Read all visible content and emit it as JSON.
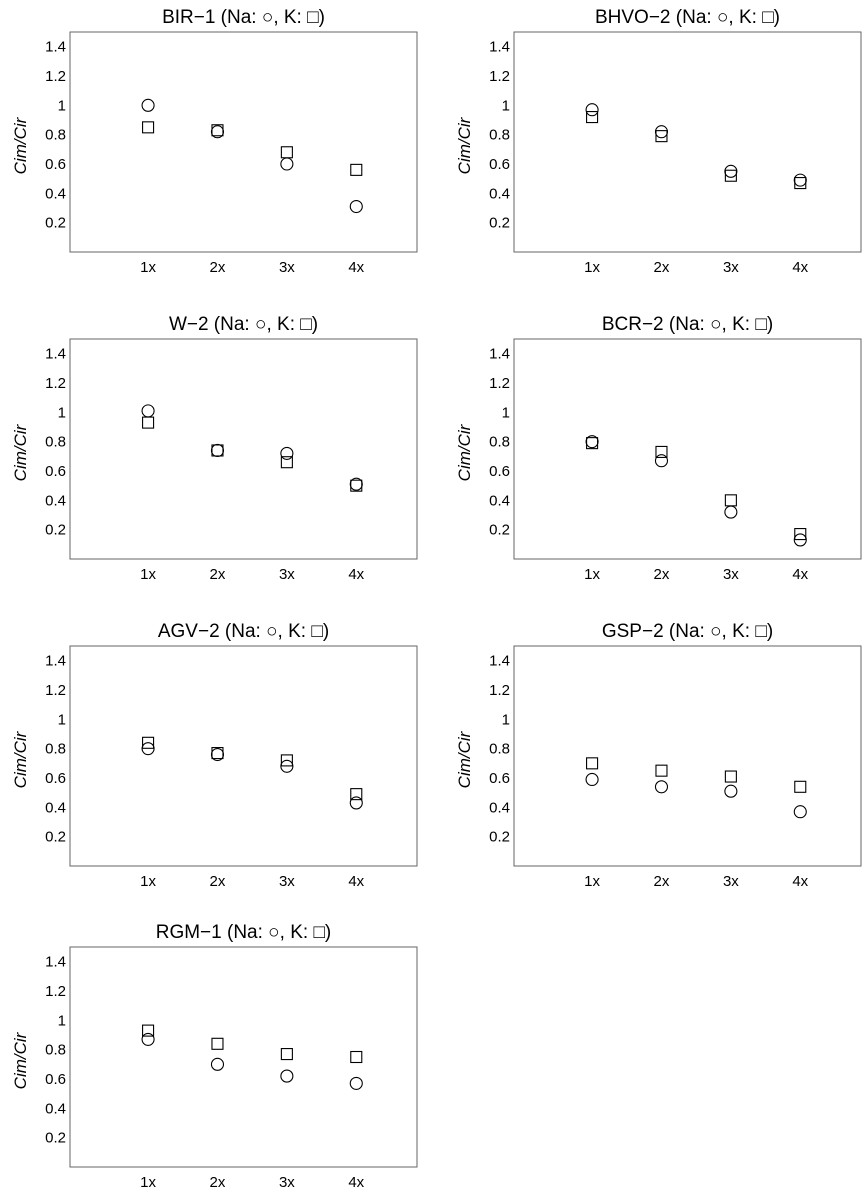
{
  "chart_data": [
    {
      "type": "scatter",
      "title": "BIR−1 (Na: ○, K: □)",
      "xlabel": "",
      "ylabel": "Cim/Cir",
      "categories": [
        "1x",
        "2x",
        "3x",
        "4x"
      ],
      "yticks": [
        "0.2",
        "0.4",
        "0.6",
        "0.8",
        "1",
        "1.2",
        "1.4"
      ],
      "ylim": [
        0,
        1.5
      ],
      "grid": false,
      "series": [
        {
          "marker": "circle",
          "values": [
            1.0,
            0.82,
            0.6,
            0.31
          ]
        },
        {
          "marker": "square",
          "values": [
            0.85,
            0.83,
            0.68,
            0.56
          ]
        }
      ]
    },
    {
      "type": "scatter",
      "title": "BHVO−2 (Na: ○, K: □)",
      "xlabel": "",
      "ylabel": "Cim/Cir",
      "categories": [
        "1x",
        "2x",
        "3x",
        "4x"
      ],
      "yticks": [
        "0.2",
        "0.4",
        "0.6",
        "0.8",
        "1",
        "1.2",
        "1.4"
      ],
      "ylim": [
        0,
        1.5
      ],
      "grid": false,
      "series": [
        {
          "marker": "circle",
          "values": [
            0.97,
            0.82,
            0.55,
            0.49
          ]
        },
        {
          "marker": "square",
          "values": [
            0.92,
            0.79,
            0.52,
            0.47
          ]
        }
      ]
    },
    {
      "type": "scatter",
      "title": "W−2 (Na: ○, K: □)",
      "xlabel": "",
      "ylabel": "Cim/Cir",
      "categories": [
        "1x",
        "2x",
        "3x",
        "4x"
      ],
      "yticks": [
        "0.2",
        "0.4",
        "0.6",
        "0.8",
        "1",
        "1.2",
        "1.4"
      ],
      "ylim": [
        0,
        1.5
      ],
      "grid": false,
      "series": [
        {
          "marker": "circle",
          "values": [
            1.01,
            0.74,
            0.72,
            0.51
          ]
        },
        {
          "marker": "square",
          "values": [
            0.93,
            0.74,
            0.66,
            0.5
          ]
        }
      ]
    },
    {
      "type": "scatter",
      "title": "BCR−2 (Na: ○, K: □)",
      "xlabel": "",
      "ylabel": "Cim/Cir",
      "categories": [
        "1x",
        "2x",
        "3x",
        "4x"
      ],
      "yticks": [
        "0.2",
        "0.4",
        "0.6",
        "0.8",
        "1",
        "1.2",
        "1.4"
      ],
      "ylim": [
        0,
        1.5
      ],
      "grid": false,
      "series": [
        {
          "marker": "circle",
          "values": [
            0.8,
            0.67,
            0.32,
            0.13
          ]
        },
        {
          "marker": "square",
          "values": [
            0.79,
            0.73,
            0.4,
            0.17
          ]
        }
      ]
    },
    {
      "type": "scatter",
      "title": "AGV−2 (Na: ○, K: □)",
      "xlabel": "",
      "ylabel": "Cim/Cir",
      "categories": [
        "1x",
        "2x",
        "3x",
        "4x"
      ],
      "yticks": [
        "0.2",
        "0.4",
        "0.6",
        "0.8",
        "1",
        "1.2",
        "1.4"
      ],
      "ylim": [
        0,
        1.5
      ],
      "grid": false,
      "series": [
        {
          "marker": "circle",
          "values": [
            0.8,
            0.76,
            0.68,
            0.43
          ]
        },
        {
          "marker": "square",
          "values": [
            0.84,
            0.77,
            0.72,
            0.49
          ]
        }
      ]
    },
    {
      "type": "scatter",
      "title": "GSP−2 (Na: ○, K: □)",
      "xlabel": "",
      "ylabel": "Cim/Cir",
      "categories": [
        "1x",
        "2x",
        "3x",
        "4x"
      ],
      "yticks": [
        "0.2",
        "0.4",
        "0.6",
        "0.8",
        "1",
        "1.2",
        "1.4"
      ],
      "ylim": [
        0,
        1.5
      ],
      "grid": false,
      "series": [
        {
          "marker": "circle",
          "values": [
            0.59,
            0.54,
            0.51,
            0.37
          ]
        },
        {
          "marker": "square",
          "values": [
            0.7,
            0.65,
            0.61,
            0.54
          ]
        }
      ]
    },
    {
      "type": "scatter",
      "title": "RGM−1 (Na: ○, K: □)",
      "xlabel": "",
      "ylabel": "Cim/Cir",
      "categories": [
        "1x",
        "2x",
        "3x",
        "4x"
      ],
      "yticks": [
        "0.2",
        "0.4",
        "0.6",
        "0.8",
        "1",
        "1.2",
        "1.4"
      ],
      "ylim": [
        0,
        1.5
      ],
      "grid": false,
      "series": [
        {
          "marker": "circle",
          "values": [
            0.87,
            0.7,
            0.62,
            0.57
          ]
        },
        {
          "marker": "square",
          "values": [
            0.93,
            0.84,
            0.77,
            0.75
          ]
        }
      ]
    }
  ]
}
